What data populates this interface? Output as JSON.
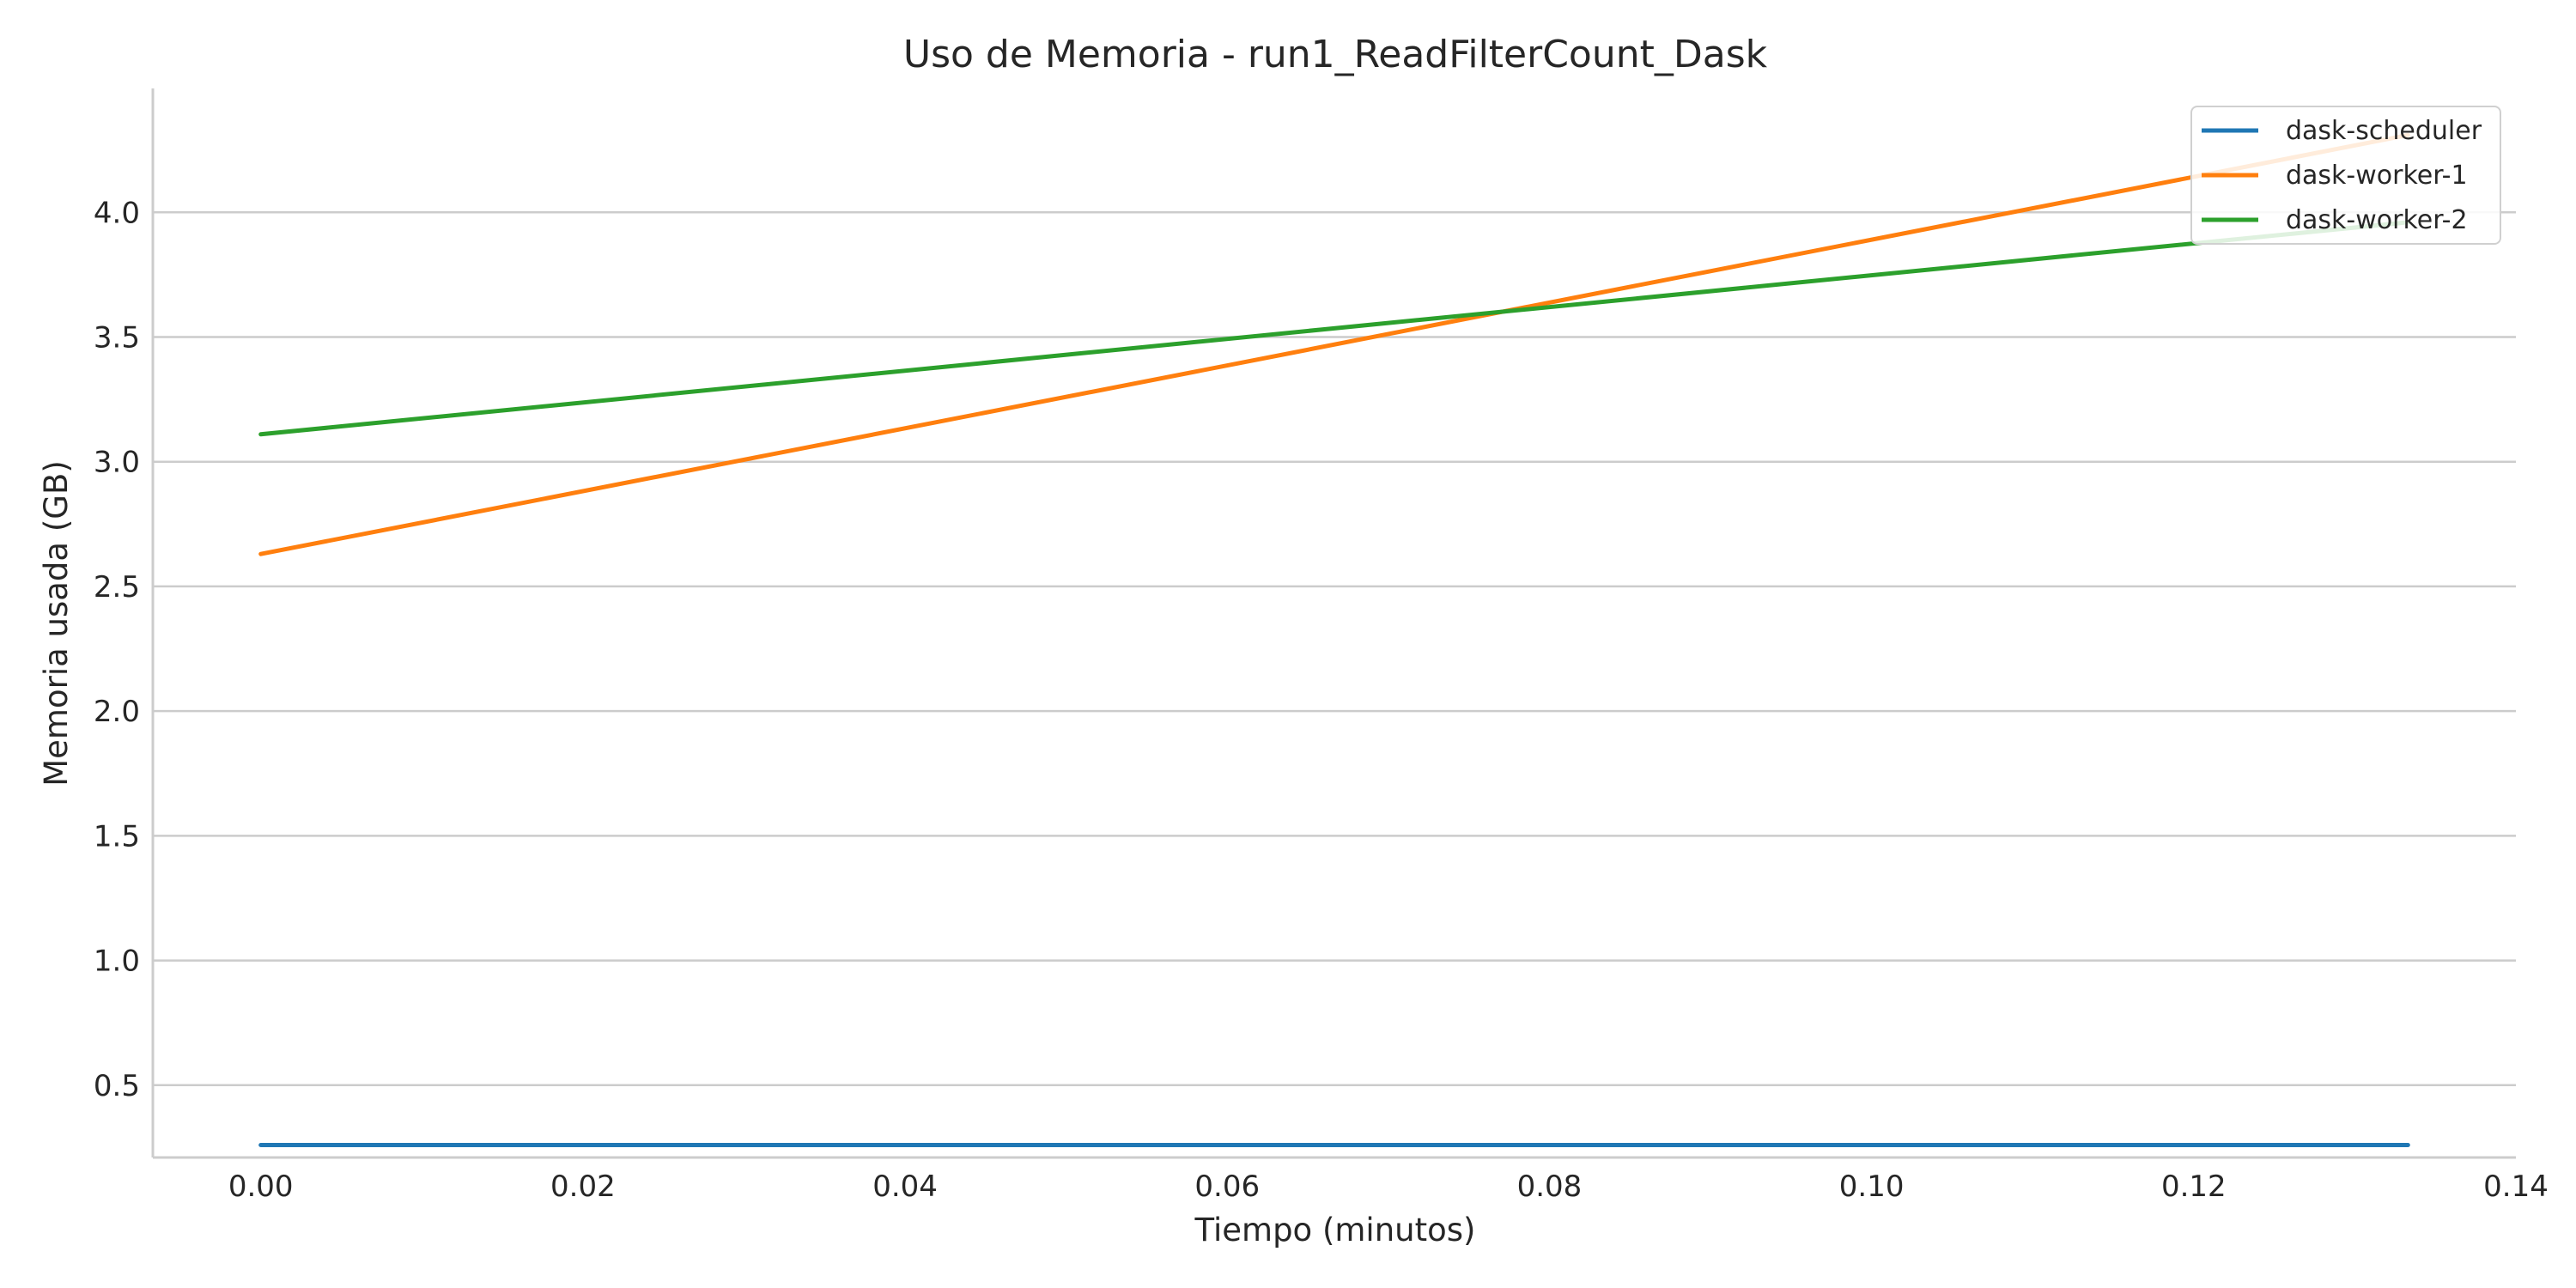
{
  "chart_data": {
    "type": "line",
    "title": "Uso de Memoria - run1_ReadFilterCount_Dask",
    "xlabel": "Tiempo (minutos)",
    "ylabel": "Memoria usada (GB)",
    "xlim": [
      -0.0067,
      0.14
    ],
    "ylim": [
      0.21,
      4.49
    ],
    "xticks": [
      0.0,
      0.02,
      0.04,
      0.06,
      0.08,
      0.1,
      0.12,
      0.14
    ],
    "xtick_labels": [
      "0.00",
      "0.02",
      "0.04",
      "0.06",
      "0.08",
      "0.10",
      "0.12",
      "0.14"
    ],
    "yticks": [
      0.5,
      1.0,
      1.5,
      2.0,
      2.5,
      3.0,
      3.5,
      4.0
    ],
    "ytick_labels": [
      "0.5",
      "1.0",
      "1.5",
      "2.0",
      "2.5",
      "3.0",
      "3.5",
      "4.0"
    ],
    "grid": "horizontal",
    "legend_position": "top-right",
    "series": [
      {
        "name": "dask-scheduler",
        "color": "#1f77b4",
        "x": [
          0.0,
          0.1333
        ],
        "y": [
          0.26,
          0.26
        ]
      },
      {
        "name": "dask-worker-1",
        "color": "#ff7f0e",
        "x": [
          0.0,
          0.1333
        ],
        "y": [
          2.63,
          4.31
        ]
      },
      {
        "name": "dask-worker-2",
        "color": "#2ca02c",
        "x": [
          0.0,
          0.1333
        ],
        "y": [
          3.11,
          3.96
        ]
      }
    ]
  }
}
